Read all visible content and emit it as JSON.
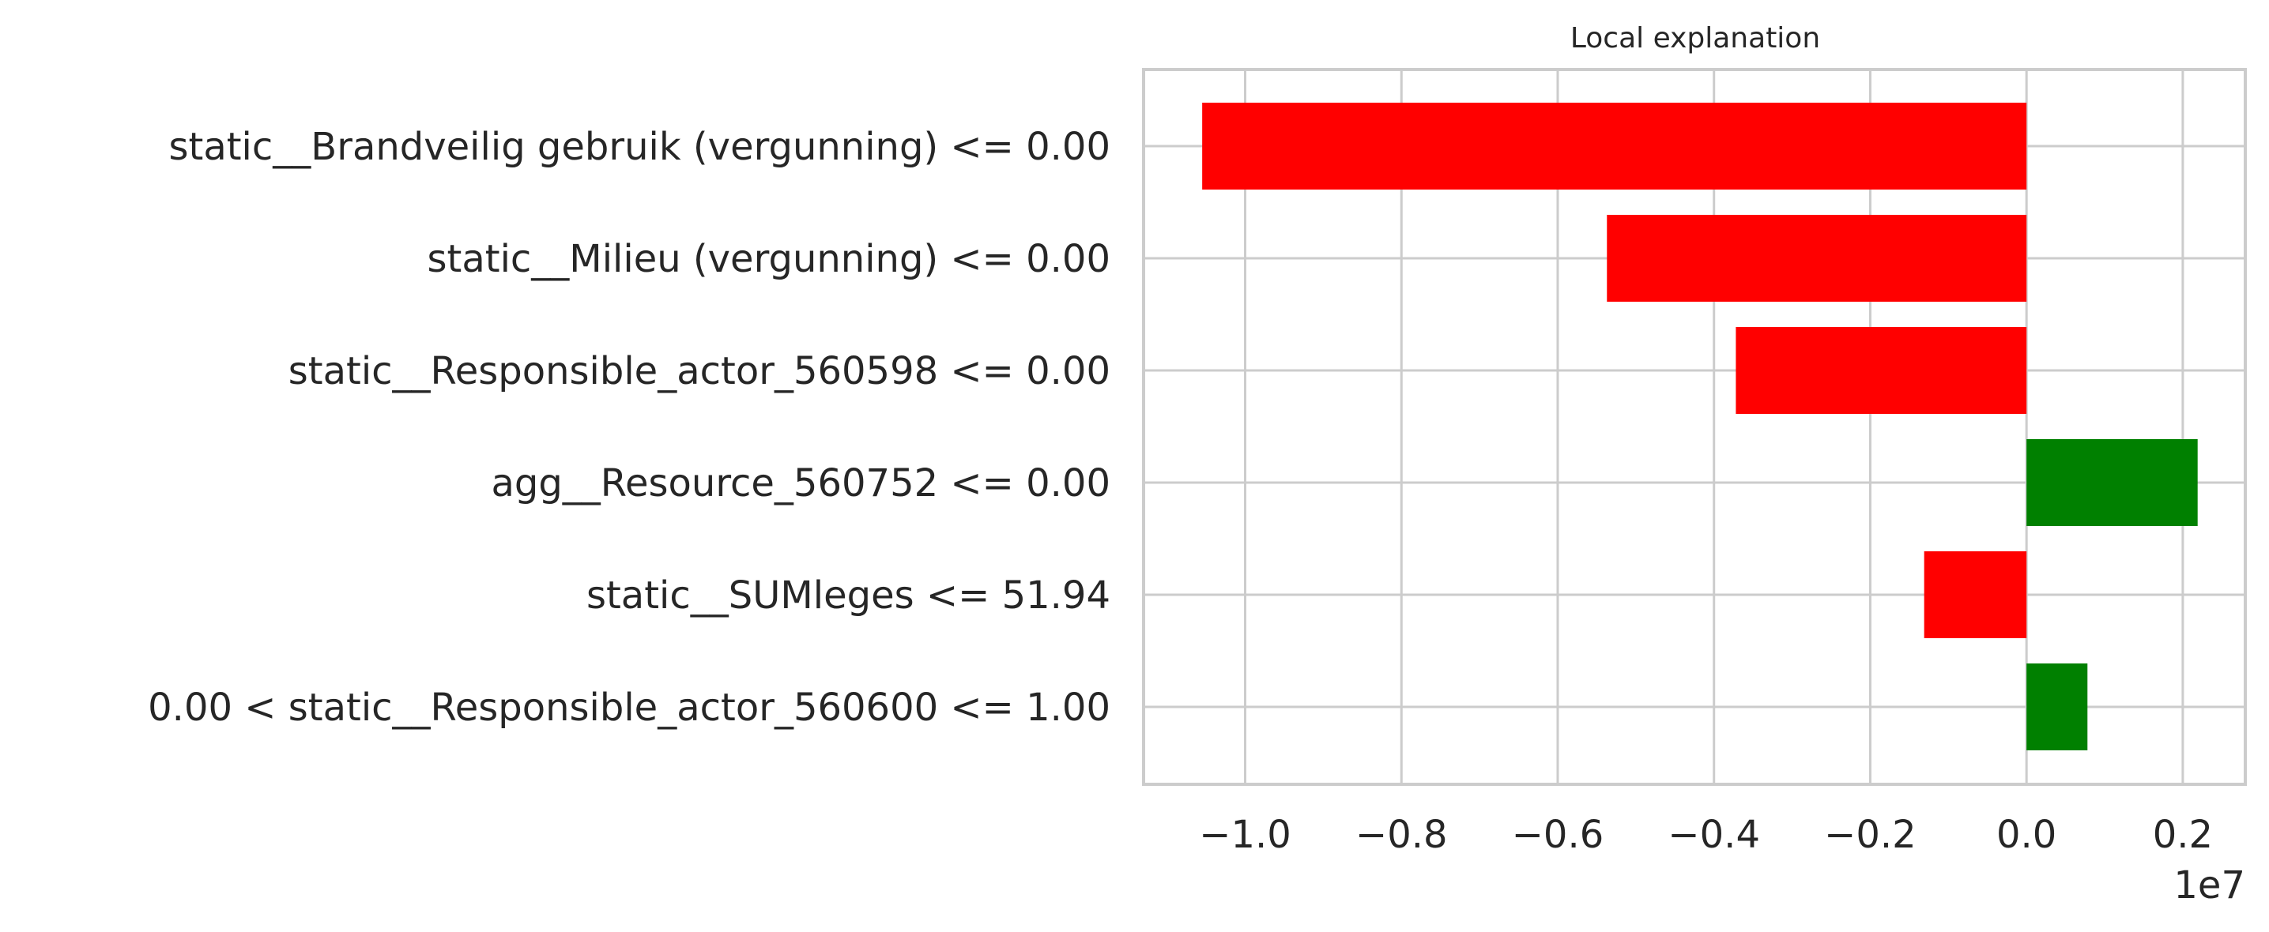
{
  "chart_data": {
    "type": "bar",
    "orientation": "horizontal",
    "title": "Local explanation",
    "xlabel": "",
    "ylabel": "",
    "x_offset_label": "1e7",
    "xlim": [
      -1.13,
      0.28
    ],
    "xticks": [
      -1.0,
      -0.8,
      -0.6,
      -0.4,
      -0.2,
      0.0,
      0.2
    ],
    "xtick_labels": [
      "−1.0",
      "−0.8",
      "−0.6",
      "−0.4",
      "−0.2",
      "0.0",
      "0.2"
    ],
    "grid": true,
    "colors": {
      "positive": "#008000",
      "negative": "#ff0000",
      "grid": "#cccccc",
      "spine": "#cccccc",
      "text": "#262626"
    },
    "categories": [
      "static__Brandveilig gebruik (vergunning) <= 0.00",
      "static__Milieu (vergunning) <= 0.00",
      "static__Responsible_actor_560598 <= 0.00",
      "agg__Resource_560752 <= 0.00",
      "static__SUMleges <= 51.94",
      "0.00 < static__Responsible_actor_560600 <= 1.00"
    ],
    "values": [
      -1.055,
      -0.537,
      -0.372,
      0.219,
      -0.131,
      0.078
    ]
  }
}
